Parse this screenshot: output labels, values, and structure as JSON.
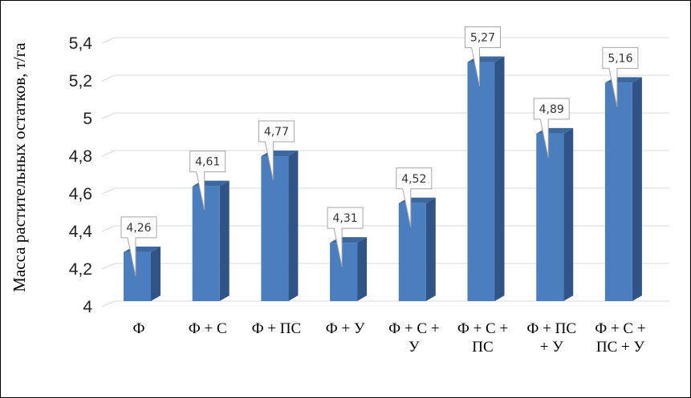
{
  "chart_data": {
    "type": "bar",
    "ylabel": "Масса растительных остатков, т/га",
    "ylim": [
      4,
      5.4
    ],
    "yticks": [
      "4",
      "4,2",
      "4,4",
      "4,6",
      "4,8",
      "5",
      "5,2",
      "5,4"
    ],
    "grid": true,
    "categories": [
      [
        "Ф"
      ],
      [
        "Ф + С"
      ],
      [
        "Ф + ПС"
      ],
      [
        "Ф + У"
      ],
      [
        "Ф + С +",
        "У"
      ],
      [
        "Ф + С +",
        "ПС"
      ],
      [
        "Ф + ПС",
        "+ У"
      ],
      [
        "Ф + С +",
        "ПС + У"
      ]
    ],
    "values": [
      4.26,
      4.61,
      4.77,
      4.31,
      4.52,
      5.27,
      4.89,
      5.16
    ],
    "labels": [
      "4,26",
      "4,61",
      "4,77",
      "4,31",
      "4,52",
      "5,27",
      "4,89",
      "5,16"
    ],
    "colors": {
      "bar_front": "#4a7ebf",
      "bar_side": "#2f5485",
      "bar_top": "#3a689f",
      "grid": "#d9d9d9",
      "callout_border": "#a6a6a6"
    }
  }
}
